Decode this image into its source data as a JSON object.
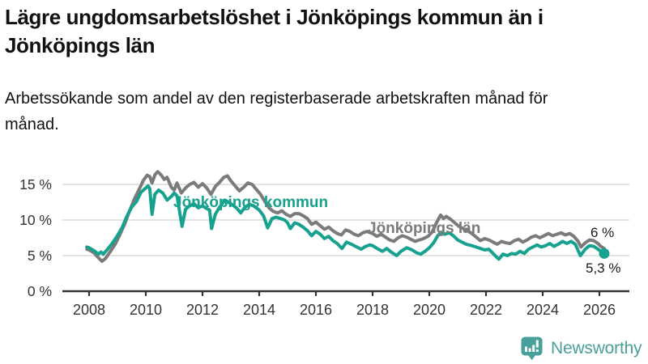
{
  "header": {
    "title": "Lägre ungdomsarbetslöshet i Jönköpings kommun än i Jönköpings län",
    "subtitle": "Arbetssökande som andel av den registerbaserade arbetskraften månad för månad."
  },
  "branding": {
    "logo_text": "Newsworthy",
    "logo_icon": "bar-chart-speech-bubble-icon",
    "brand_color": "#48a09b"
  },
  "chart_data": {
    "type": "line",
    "title": "Lägre ungdomsarbetslöshet i Jönköpings kommun än i Jönköpings län",
    "subtitle": "Arbetssökande som andel av den registerbaserade arbetskraften månad för månad.",
    "unit": "%",
    "grid": true,
    "legend_position": "inline-labels-on-lines",
    "x_axis": {
      "range": [
        2007.9,
        2026.6
      ],
      "ticks": [
        {
          "value": 2008,
          "label": "2008"
        },
        {
          "value": 2010,
          "label": "2010"
        },
        {
          "value": 2012,
          "label": "2012"
        },
        {
          "value": 2014,
          "label": "2014"
        },
        {
          "value": 2016,
          "label": "2016"
        },
        {
          "value": 2018,
          "label": "2018"
        },
        {
          "value": 2020,
          "label": "2020"
        },
        {
          "value": 2022,
          "label": "2022"
        },
        {
          "value": 2024,
          "label": "2024"
        },
        {
          "value": 2026,
          "label": "2026"
        }
      ]
    },
    "y_axis": {
      "range": [
        0,
        17.6
      ],
      "ticks": [
        {
          "value": 0,
          "label": "0 %"
        },
        {
          "value": 5,
          "label": "5 %"
        },
        {
          "value": 10,
          "label": "10 %"
        },
        {
          "value": 15,
          "label": "15 %"
        }
      ]
    },
    "colors": {
      "kommun": "#17a18f",
      "lan": "#7b7b7b",
      "gridline": "#dadada",
      "axis": "#333333",
      "tick_text": "#333333"
    },
    "series": [
      {
        "name": "Jönköpings län",
        "color": "#7b7b7b",
        "end_label": "6 %",
        "end_value": 6.0,
        "end_dot": false,
        "points": [
          [
            2007.92,
            5.9
          ],
          [
            2008.0,
            5.8
          ],
          [
            2008.17,
            5.4
          ],
          [
            2008.33,
            4.7
          ],
          [
            2008.45,
            4.2
          ],
          [
            2008.58,
            4.6
          ],
          [
            2008.75,
            5.6
          ],
          [
            2008.92,
            6.6
          ],
          [
            2009.08,
            7.9
          ],
          [
            2009.25,
            9.4
          ],
          [
            2009.42,
            11.2
          ],
          [
            2009.58,
            12.8
          ],
          [
            2009.75,
            14.2
          ],
          [
            2009.92,
            15.6
          ],
          [
            2010.05,
            16.3
          ],
          [
            2010.14,
            16.1
          ],
          [
            2010.22,
            15.2
          ],
          [
            2010.33,
            16.4
          ],
          [
            2010.42,
            16.8
          ],
          [
            2010.55,
            16.3
          ],
          [
            2010.65,
            15.7
          ],
          [
            2010.75,
            16.0
          ],
          [
            2010.9,
            14.6
          ],
          [
            2011.0,
            14.2
          ],
          [
            2011.1,
            15.2
          ],
          [
            2011.25,
            13.8
          ],
          [
            2011.4,
            14.5
          ],
          [
            2011.55,
            15.0
          ],
          [
            2011.7,
            15.3
          ],
          [
            2011.85,
            14.6
          ],
          [
            2012.0,
            15.1
          ],
          [
            2012.15,
            14.5
          ],
          [
            2012.3,
            13.6
          ],
          [
            2012.45,
            14.7
          ],
          [
            2012.6,
            15.3
          ],
          [
            2012.75,
            16.0
          ],
          [
            2012.88,
            16.2
          ],
          [
            2013.0,
            15.5
          ],
          [
            2013.15,
            14.8
          ],
          [
            2013.3,
            14.1
          ],
          [
            2013.45,
            14.6
          ],
          [
            2013.6,
            15.2
          ],
          [
            2013.75,
            15.0
          ],
          [
            2013.9,
            14.3
          ],
          [
            2014.05,
            13.6
          ],
          [
            2014.2,
            12.6
          ],
          [
            2014.35,
            11.7
          ],
          [
            2014.5,
            11.2
          ],
          [
            2014.65,
            11.0
          ],
          [
            2014.8,
            11.3
          ],
          [
            2014.95,
            10.8
          ],
          [
            2015.1,
            10.5
          ],
          [
            2015.25,
            10.9
          ],
          [
            2015.4,
            10.9
          ],
          [
            2015.55,
            10.6
          ],
          [
            2015.7,
            10.2
          ],
          [
            2015.85,
            9.4
          ],
          [
            2016.0,
            9.7
          ],
          [
            2016.15,
            9.2
          ],
          [
            2016.3,
            8.7
          ],
          [
            2016.45,
            9.0
          ],
          [
            2016.6,
            8.5
          ],
          [
            2016.75,
            8.1
          ],
          [
            2016.9,
            7.9
          ],
          [
            2017.05,
            8.6
          ],
          [
            2017.2,
            8.4
          ],
          [
            2017.35,
            8.0
          ],
          [
            2017.5,
            7.8
          ],
          [
            2017.65,
            8.2
          ],
          [
            2017.8,
            8.4
          ],
          [
            2018.0,
            8.1
          ],
          [
            2018.15,
            7.7
          ],
          [
            2018.3,
            8.0
          ],
          [
            2018.45,
            7.6
          ],
          [
            2018.6,
            7.2
          ],
          [
            2018.75,
            7.0
          ],
          [
            2018.9,
            7.5
          ],
          [
            2019.05,
            7.8
          ],
          [
            2019.2,
            7.6
          ],
          [
            2019.35,
            7.3
          ],
          [
            2019.5,
            7.0
          ],
          [
            2019.65,
            7.2
          ],
          [
            2019.8,
            7.4
          ],
          [
            2019.95,
            7.7
          ],
          [
            2020.1,
            8.3
          ],
          [
            2020.25,
            9.6
          ],
          [
            2020.4,
            10.7
          ],
          [
            2020.5,
            10.2
          ],
          [
            2020.6,
            10.5
          ],
          [
            2020.75,
            10.1
          ],
          [
            2020.9,
            9.6
          ],
          [
            2021.05,
            9.1
          ],
          [
            2021.2,
            8.8
          ],
          [
            2021.35,
            8.5
          ],
          [
            2021.5,
            8.1
          ],
          [
            2021.65,
            7.6
          ],
          [
            2021.8,
            7.1
          ],
          [
            2021.95,
            7.4
          ],
          [
            2022.1,
            7.2
          ],
          [
            2022.25,
            6.9
          ],
          [
            2022.4,
            6.6
          ],
          [
            2022.55,
            7.0
          ],
          [
            2022.7,
            6.8
          ],
          [
            2022.85,
            6.7
          ],
          [
            2023.0,
            7.1
          ],
          [
            2023.15,
            7.3
          ],
          [
            2023.3,
            6.9
          ],
          [
            2023.45,
            7.2
          ],
          [
            2023.6,
            7.6
          ],
          [
            2023.75,
            7.8
          ],
          [
            2023.9,
            7.5
          ],
          [
            2024.05,
            7.8
          ],
          [
            2024.2,
            8.1
          ],
          [
            2024.35,
            7.8
          ],
          [
            2024.5,
            8.0
          ],
          [
            2024.65,
            8.2
          ],
          [
            2024.8,
            7.9
          ],
          [
            2024.95,
            8.1
          ],
          [
            2025.1,
            7.7
          ],
          [
            2025.25,
            7.0
          ],
          [
            2025.35,
            6.2
          ],
          [
            2025.5,
            6.8
          ],
          [
            2025.65,
            7.2
          ],
          [
            2025.8,
            7.1
          ],
          [
            2025.95,
            6.7
          ],
          [
            2026.05,
            6.3
          ],
          [
            2026.17,
            6.0
          ]
        ]
      },
      {
        "name": "Jönköpings kommun",
        "color": "#17a18f",
        "end_label": "5,3 %",
        "end_value": 5.3,
        "end_dot": true,
        "points": [
          [
            2007.92,
            6.2
          ],
          [
            2008.0,
            6.1
          ],
          [
            2008.17,
            5.7
          ],
          [
            2008.33,
            5.2
          ],
          [
            2008.42,
            5.5
          ],
          [
            2008.5,
            5.2
          ],
          [
            2008.67,
            6.0
          ],
          [
            2008.83,
            6.8
          ],
          [
            2009.0,
            7.8
          ],
          [
            2009.17,
            9.0
          ],
          [
            2009.33,
            10.5
          ],
          [
            2009.5,
            11.8
          ],
          [
            2009.67,
            12.6
          ],
          [
            2009.83,
            13.9
          ],
          [
            2010.0,
            14.5
          ],
          [
            2010.08,
            14.8
          ],
          [
            2010.14,
            14.4
          ],
          [
            2010.22,
            10.8
          ],
          [
            2010.32,
            13.6
          ],
          [
            2010.45,
            14.2
          ],
          [
            2010.6,
            13.8
          ],
          [
            2010.75,
            12.8
          ],
          [
            2010.9,
            13.3
          ],
          [
            2011.0,
            13.8
          ],
          [
            2011.1,
            13.4
          ],
          [
            2011.2,
            11.0
          ],
          [
            2011.28,
            9.1
          ],
          [
            2011.4,
            11.5
          ],
          [
            2011.55,
            12.0
          ],
          [
            2011.7,
            12.3
          ],
          [
            2011.85,
            11.7
          ],
          [
            2012.0,
            12.0
          ],
          [
            2012.15,
            11.6
          ],
          [
            2012.25,
            11.4
          ],
          [
            2012.32,
            8.8
          ],
          [
            2012.45,
            10.8
          ],
          [
            2012.6,
            11.8
          ],
          [
            2012.8,
            12.8
          ],
          [
            2013.0,
            12.3
          ],
          [
            2013.2,
            11.7
          ],
          [
            2013.35,
            11.0
          ],
          [
            2013.5,
            11.8
          ],
          [
            2013.65,
            12.2
          ],
          [
            2013.8,
            12.0
          ],
          [
            2014.0,
            11.4
          ],
          [
            2014.15,
            10.6
          ],
          [
            2014.3,
            8.9
          ],
          [
            2014.45,
            10.2
          ],
          [
            2014.6,
            10.4
          ],
          [
            2014.75,
            10.2
          ],
          [
            2014.9,
            10.0
          ],
          [
            2015.0,
            9.6
          ],
          [
            2015.1,
            8.8
          ],
          [
            2015.25,
            9.6
          ],
          [
            2015.4,
            9.4
          ],
          [
            2015.55,
            9.0
          ],
          [
            2015.7,
            8.5
          ],
          [
            2015.85,
            7.8
          ],
          [
            2016.0,
            8.4
          ],
          [
            2016.15,
            8.0
          ],
          [
            2016.3,
            7.4
          ],
          [
            2016.45,
            7.7
          ],
          [
            2016.6,
            7.1
          ],
          [
            2016.75,
            6.7
          ],
          [
            2016.92,
            6.0
          ],
          [
            2017.08,
            6.9
          ],
          [
            2017.25,
            6.6
          ],
          [
            2017.4,
            6.3
          ],
          [
            2017.6,
            5.9
          ],
          [
            2017.75,
            6.3
          ],
          [
            2017.9,
            6.5
          ],
          [
            2018.0,
            6.4
          ],
          [
            2018.2,
            5.9
          ],
          [
            2018.35,
            5.6
          ],
          [
            2018.5,
            6.0
          ],
          [
            2018.65,
            5.5
          ],
          [
            2018.85,
            5.0
          ],
          [
            2019.0,
            5.6
          ],
          [
            2019.2,
            6.1
          ],
          [
            2019.4,
            5.8
          ],
          [
            2019.55,
            5.4
          ],
          [
            2019.7,
            5.2
          ],
          [
            2019.85,
            5.6
          ],
          [
            2020.0,
            6.1
          ],
          [
            2020.15,
            6.8
          ],
          [
            2020.3,
            7.8
          ],
          [
            2020.42,
            8.3
          ],
          [
            2020.55,
            8.0
          ],
          [
            2020.7,
            8.2
          ],
          [
            2020.85,
            7.8
          ],
          [
            2021.0,
            7.2
          ],
          [
            2021.15,
            6.9
          ],
          [
            2021.3,
            6.6
          ],
          [
            2021.5,
            6.4
          ],
          [
            2021.65,
            6.2
          ],
          [
            2021.8,
            6.0
          ],
          [
            2021.95,
            5.8
          ],
          [
            2022.1,
            5.9
          ],
          [
            2022.25,
            5.3
          ],
          [
            2022.35,
            4.9
          ],
          [
            2022.45,
            4.5
          ],
          [
            2022.6,
            5.2
          ],
          [
            2022.75,
            5.0
          ],
          [
            2022.9,
            5.3
          ],
          [
            2023.05,
            5.2
          ],
          [
            2023.2,
            5.6
          ],
          [
            2023.35,
            5.3
          ],
          [
            2023.5,
            5.9
          ],
          [
            2023.65,
            6.2
          ],
          [
            2023.8,
            6.5
          ],
          [
            2023.95,
            6.2
          ],
          [
            2024.1,
            6.4
          ],
          [
            2024.25,
            6.7
          ],
          [
            2024.4,
            6.3
          ],
          [
            2024.55,
            6.6
          ],
          [
            2024.7,
            7.0
          ],
          [
            2024.85,
            6.7
          ],
          [
            2025.0,
            7.0
          ],
          [
            2025.15,
            6.6
          ],
          [
            2025.33,
            5.0
          ],
          [
            2025.5,
            5.9
          ],
          [
            2025.65,
            6.4
          ],
          [
            2025.8,
            6.3
          ],
          [
            2025.95,
            5.9
          ],
          [
            2026.05,
            5.6
          ],
          [
            2026.17,
            5.3
          ]
        ]
      }
    ]
  }
}
